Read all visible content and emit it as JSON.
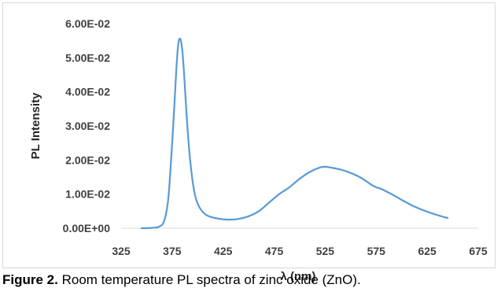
{
  "caption": {
    "label": "Figure 2.",
    "text": " Room temperature PL spectra of zinc oxide (ZnO)."
  },
  "chart_data": {
    "type": "line",
    "title": "",
    "xlabel": "λ (nm)",
    "ylabel": "PL Intensity",
    "xlim": [
      325,
      675
    ],
    "ylim": [
      0,
      0.06
    ],
    "x_ticks": [
      "325",
      "375",
      "425",
      "475",
      "525",
      "575",
      "625",
      "675"
    ],
    "y_ticks": [
      "0.00E+00",
      "1.00E-02",
      "2.00E-02",
      "3.00E-02",
      "4.00E-02",
      "5.00E-02",
      "6.00E-02"
    ],
    "grid": false,
    "legend": "none",
    "series": [
      {
        "color": "#5b9bd5",
        "x": [
          345,
          355,
          362,
          367,
          371,
          374,
          377,
          379,
          381,
          383,
          385,
          387,
          389,
          392,
          395,
          398,
          402,
          407,
          412,
          420,
          430,
          440,
          450,
          460,
          470,
          480,
          490,
          500,
          510,
          520,
          525,
          530,
          540,
          550,
          560,
          570,
          575,
          580,
          590,
          600,
          610,
          620,
          630,
          640,
          645
        ],
        "y": [
          0.0,
          0.0001,
          0.0004,
          0.002,
          0.008,
          0.02,
          0.035,
          0.046,
          0.054,
          0.0555,
          0.052,
          0.044,
          0.034,
          0.022,
          0.014,
          0.009,
          0.006,
          0.0042,
          0.0034,
          0.0028,
          0.0025,
          0.0027,
          0.0035,
          0.005,
          0.0075,
          0.01,
          0.012,
          0.0145,
          0.0165,
          0.0178,
          0.018,
          0.0178,
          0.0172,
          0.0162,
          0.0148,
          0.0128,
          0.012,
          0.0115,
          0.01,
          0.0083,
          0.0067,
          0.0054,
          0.0043,
          0.0034,
          0.003
        ]
      }
    ]
  }
}
